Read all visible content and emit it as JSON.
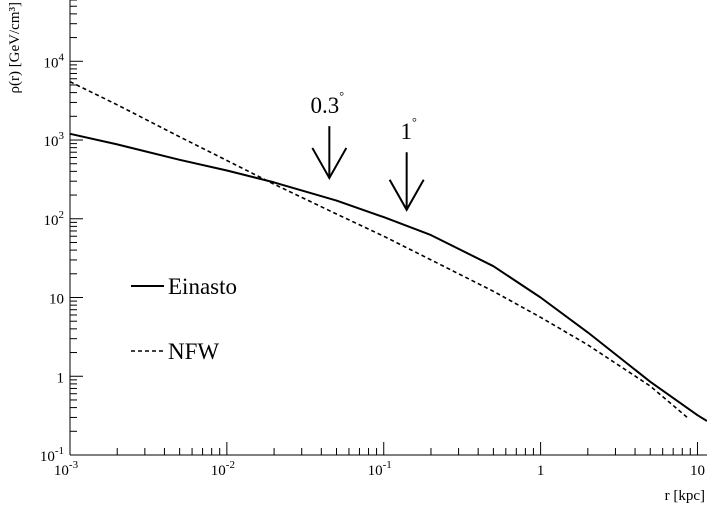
{
  "chart_data": {
    "type": "line",
    "title": "",
    "xlabel": "r [kpc]",
    "ylabel": "ρ(r) [GeV/cm³]",
    "x_scale": "log",
    "y_scale": "log",
    "xlim": [
      0.001,
      11.5
    ],
    "ylim": [
      0.1,
      60000
    ],
    "grid": false,
    "legend_placement": "left",
    "x_ticks": [
      {
        "value": 0.001,
        "label": "10",
        "exp": "-3"
      },
      {
        "value": 0.01,
        "label": "10",
        "exp": "-2"
      },
      {
        "value": 0.1,
        "label": "10",
        "exp": "-1"
      },
      {
        "value": 1,
        "label": "1",
        "exp": ""
      },
      {
        "value": 10,
        "label": "10",
        "exp": ""
      }
    ],
    "y_ticks": [
      {
        "value": 0.1,
        "label": "10",
        "exp": "-1"
      },
      {
        "value": 1,
        "label": "1",
        "exp": ""
      },
      {
        "value": 10,
        "label": "10",
        "exp": ""
      },
      {
        "value": 100,
        "label": "10",
        "exp": "2"
      },
      {
        "value": 1000,
        "label": "10",
        "exp": "3"
      },
      {
        "value": 10000,
        "label": "10",
        "exp": "4"
      }
    ],
    "series": [
      {
        "name": "Einasto",
        "style": "solid",
        "color": "#000000",
        "x": [
          0.001,
          0.002,
          0.005,
          0.01,
          0.02,
          0.05,
          0.1,
          0.2,
          0.5,
          1,
          2,
          5,
          10,
          11.5
        ],
        "y": [
          1200,
          880,
          560,
          410,
          290,
          170,
          105,
          62,
          25,
          10,
          3.6,
          0.85,
          0.32,
          0.27
        ]
      },
      {
        "name": "NFW",
        "style": "dashed",
        "color": "#000000",
        "x": [
          0.001,
          0.002,
          0.005,
          0.01,
          0.02,
          0.05,
          0.1,
          0.2,
          0.5,
          1,
          2,
          5,
          8.6
        ],
        "y": [
          5500,
          2800,
          1100,
          550,
          275,
          115,
          60,
          30,
          12,
          5.6,
          2.5,
          0.75,
          0.3
        ]
      }
    ],
    "annotations": [
      {
        "text": "0.3",
        "deg": "°",
        "x": 0.045,
        "y_start": 1500,
        "y_end": 330
      },
      {
        "text": "1",
        "deg": "°",
        "x": 0.14,
        "y_start": 700,
        "y_end": 130
      }
    ]
  }
}
